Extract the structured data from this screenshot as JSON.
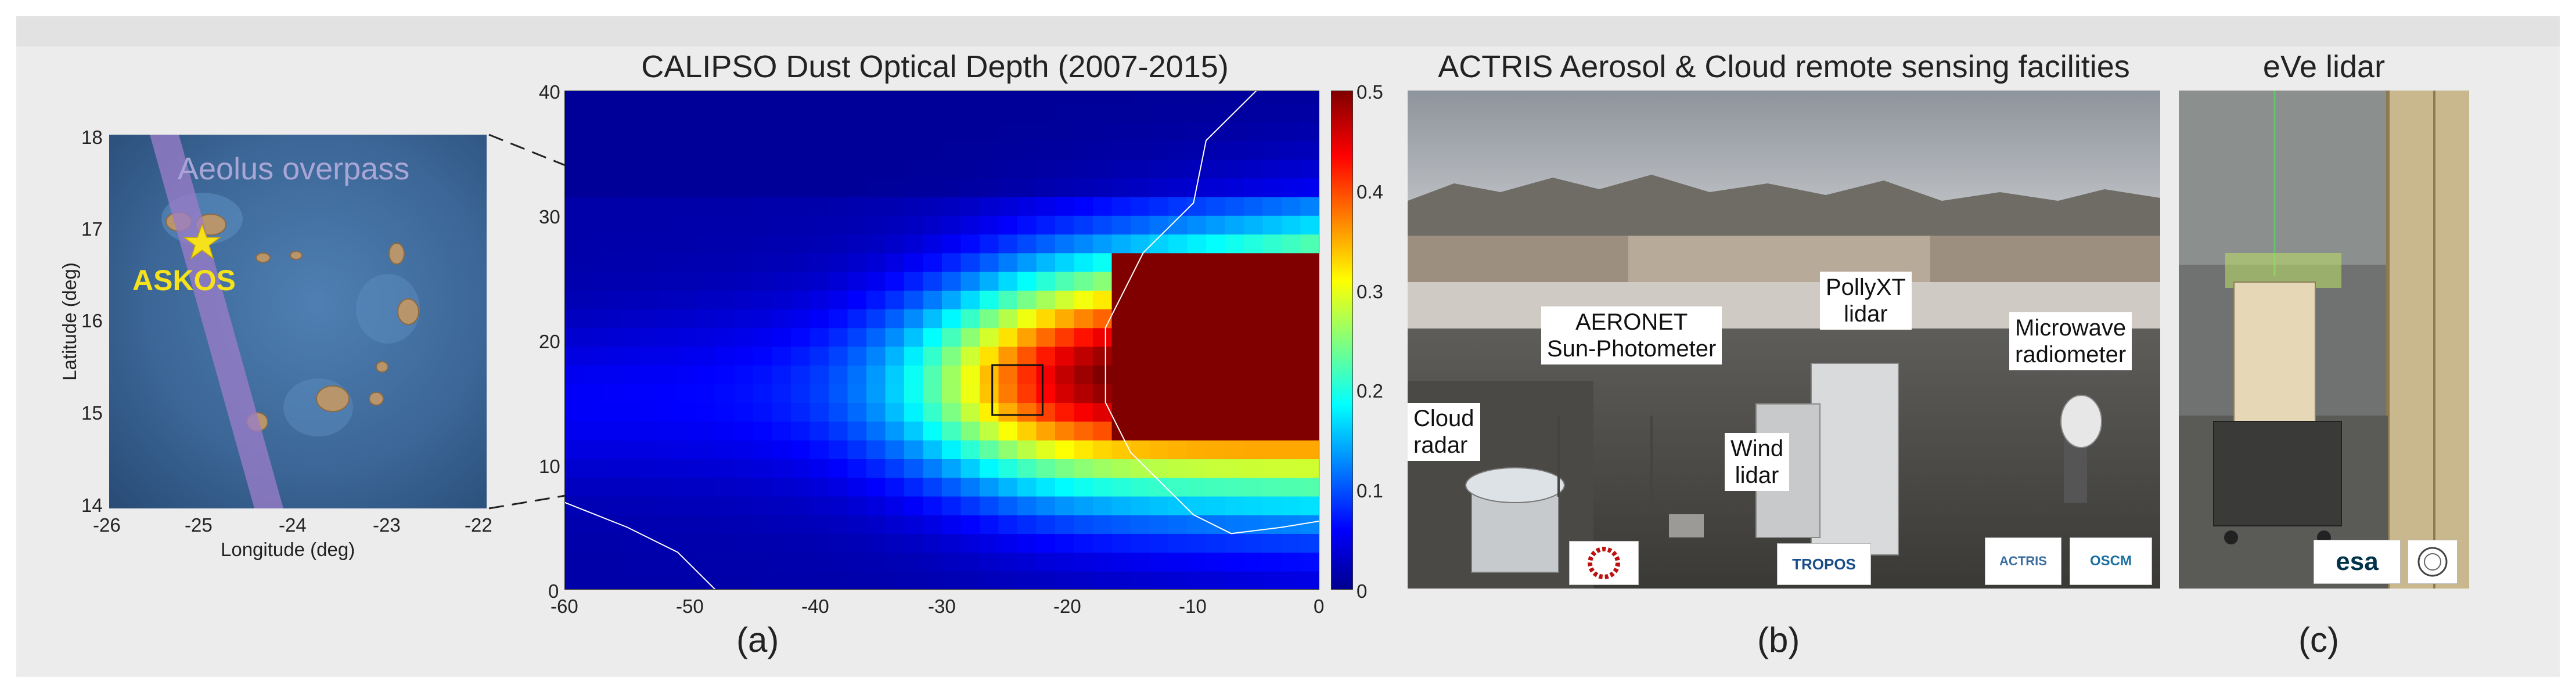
{
  "inset_map": {
    "overpass_label": "Aeolus overpass",
    "site_label": "ASKOS",
    "xlabel": "Longitude (deg)",
    "ylabel": "Latitude (deg)",
    "x_ticks": [
      "-26",
      "-25",
      "-24",
      "-23",
      "-22"
    ],
    "y_ticks": [
      "18",
      "17",
      "16",
      "15",
      "14"
    ],
    "colors": {
      "sea": "#3e6a9c",
      "overpass": "#9a7cc8",
      "site": "#f5e11c"
    }
  },
  "chart_data": {
    "type": "heatmap",
    "title": "CALIPSO Dust Optical Depth (2007-2015)",
    "xlabel": "",
    "ylabel": "",
    "xlim": [
      -60,
      0
    ],
    "ylim": [
      0,
      40
    ],
    "x_ticks": [
      "-60",
      "-50",
      "-40",
      "-30",
      "-20",
      "-10",
      "0"
    ],
    "y_ticks": [
      "40",
      "30",
      "20",
      "10",
      "0"
    ],
    "colorbar": {
      "range": [
        0,
        0.5
      ],
      "ticks": [
        "0.5",
        "0.4",
        "0.3",
        "0.2",
        "0.1",
        "0"
      ],
      "colormap": "jet"
    },
    "highlight_box": {
      "lon_range": [
        -26,
        -22
      ],
      "lat_range": [
        14,
        18
      ]
    }
  },
  "panel_b": {
    "title": "ACTRIS Aerosol & Cloud remote sensing facilities",
    "labels": {
      "aeronet_1": "AERONET",
      "aeronet_2": "Sun-Photometer",
      "pollyxt_1": "PollyXT",
      "pollyxt_2": "lidar",
      "microwave_1": "Microwave",
      "microwave_2": "radiometer",
      "cloud_1": "Cloud",
      "cloud_2": "radar",
      "wind_1": "Wind",
      "wind_2": "lidar"
    },
    "logos": {
      "tropos": "TROPOS",
      "actris": "ACTRIS",
      "oscm": "OSCM"
    },
    "id": "(b)"
  },
  "panel_c": {
    "title": "eVe lidar",
    "logos": {
      "esa": "esa"
    },
    "id": "(c)"
  },
  "panel_a": {
    "id": "(a)"
  }
}
